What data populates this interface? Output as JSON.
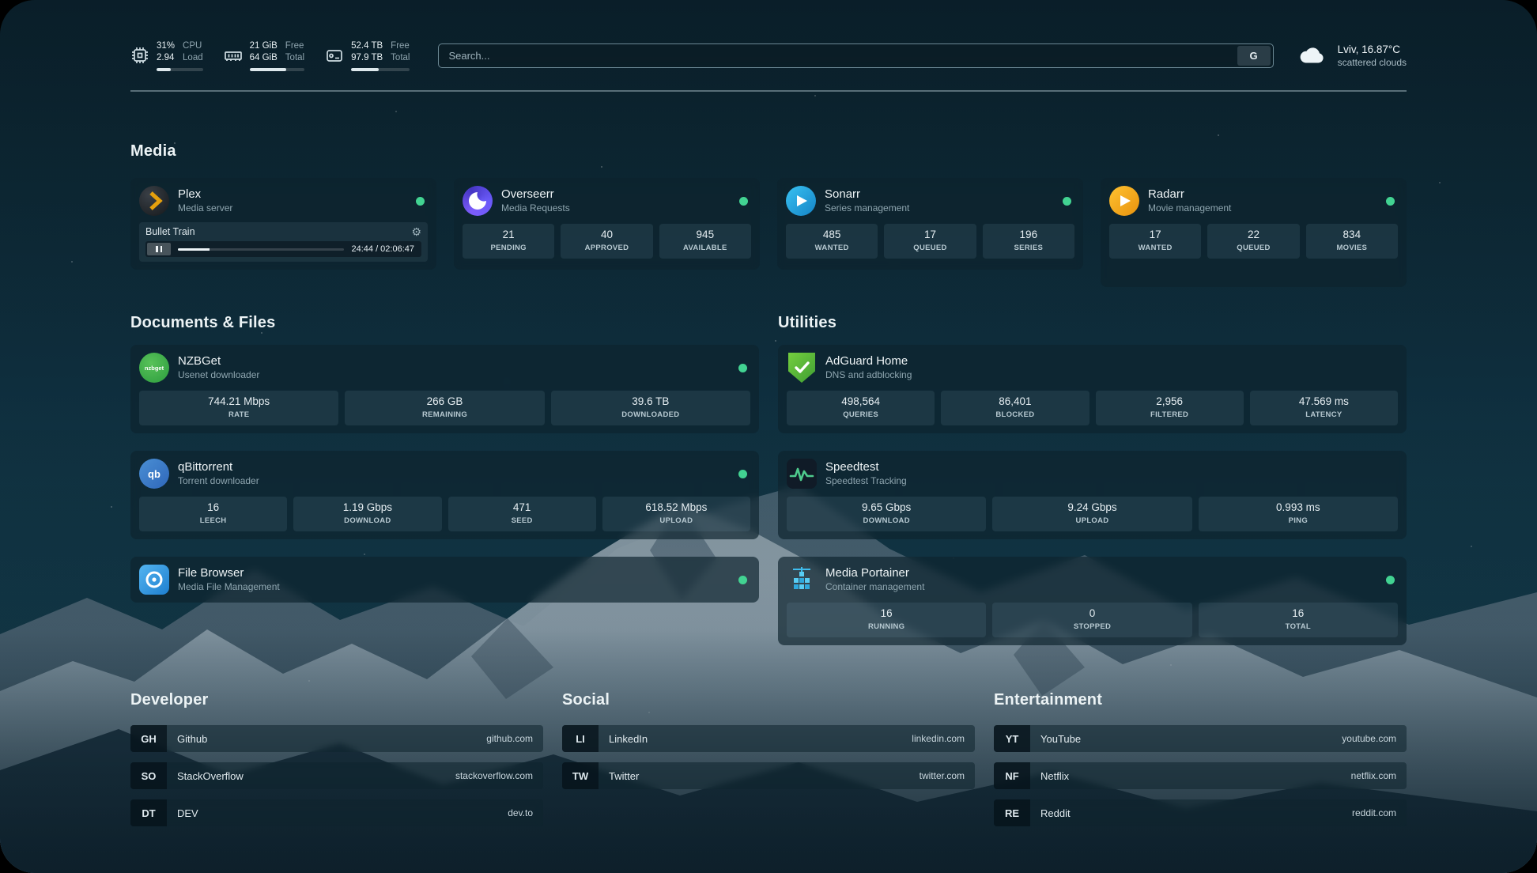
{
  "topbar": {
    "cpu": {
      "value1": "31%",
      "value2": "2.94",
      "label1": "CPU",
      "label2": "Load",
      "bar_percent": 31
    },
    "memory": {
      "value1": "21 GiB",
      "value2": "64 GiB",
      "label1": "Free",
      "label2": "Total",
      "bar_percent": 67
    },
    "disk": {
      "value1": "52.4 TB",
      "value2": "97.9 TB",
      "label1": "Free",
      "label2": "Total",
      "bar_percent": 47
    },
    "search": {
      "placeholder": "Search...",
      "button_label": "G"
    },
    "weather": {
      "location": "Lviv, 16.87°C",
      "condition": "scattered clouds"
    }
  },
  "sections": {
    "media": {
      "title": "Media",
      "plex": {
        "name": "Plex",
        "desc": "Media server",
        "now_playing": "Bullet Train",
        "time": "24:44 / 02:06:47",
        "progress_percent": 19
      },
      "overseerr": {
        "name": "Overseerr",
        "desc": "Media Requests",
        "stats": [
          {
            "value": "21",
            "label": "PENDING"
          },
          {
            "value": "40",
            "label": "APPROVED"
          },
          {
            "value": "945",
            "label": "AVAILABLE"
          }
        ]
      },
      "sonarr": {
        "name": "Sonarr",
        "desc": "Series management",
        "stats": [
          {
            "value": "485",
            "label": "WANTED"
          },
          {
            "value": "17",
            "label": "QUEUED"
          },
          {
            "value": "196",
            "label": "SERIES"
          }
        ]
      },
      "radarr": {
        "name": "Radarr",
        "desc": "Movie management",
        "stats": [
          {
            "value": "17",
            "label": "WANTED"
          },
          {
            "value": "22",
            "label": "QUEUED"
          },
          {
            "value": "834",
            "label": "MOVIES"
          }
        ]
      }
    },
    "documents": {
      "title": "Documents & Files",
      "nzbget": {
        "name": "NZBGet",
        "desc": "Usenet downloader",
        "icon_text": "nzbget",
        "stats": [
          {
            "value": "744.21 Mbps",
            "label": "RATE"
          },
          {
            "value": "266 GB",
            "label": "REMAINING"
          },
          {
            "value": "39.6 TB",
            "label": "DOWNLOADED"
          }
        ]
      },
      "qbittorrent": {
        "name": "qBittorrent",
        "desc": "Torrent downloader",
        "icon_text": "qb",
        "stats": [
          {
            "value": "16",
            "label": "LEECH"
          },
          {
            "value": "1.19 Gbps",
            "label": "DOWNLOAD"
          },
          {
            "value": "471",
            "label": "SEED"
          },
          {
            "value": "618.52 Mbps",
            "label": "UPLOAD"
          }
        ]
      },
      "filebrowser": {
        "name": "File Browser",
        "desc": "Media File Management"
      }
    },
    "utilities": {
      "title": "Utilities",
      "adguard": {
        "name": "AdGuard Home",
        "desc": "DNS and adblocking",
        "stats": [
          {
            "value": "498,564",
            "label": "QUERIES"
          },
          {
            "value": "86,401",
            "label": "BLOCKED"
          },
          {
            "value": "2,956",
            "label": "FILTERED"
          },
          {
            "value": "47.569 ms",
            "label": "LATENCY"
          }
        ]
      },
      "speedtest": {
        "name": "Speedtest",
        "desc": "Speedtest Tracking",
        "stats": [
          {
            "value": "9.65 Gbps",
            "label": "DOWNLOAD"
          },
          {
            "value": "9.24 Gbps",
            "label": "UPLOAD"
          },
          {
            "value": "0.993 ms",
            "label": "PING"
          }
        ]
      },
      "portainer": {
        "name": "Media Portainer",
        "desc": "Container management",
        "stats": [
          {
            "value": "16",
            "label": "RUNNING"
          },
          {
            "value": "0",
            "label": "STOPPED"
          },
          {
            "value": "16",
            "label": "TOTAL"
          }
        ]
      }
    },
    "bookmarks": [
      {
        "title": "Developer",
        "items": [
          {
            "abbr": "GH",
            "name": "Github",
            "url": "github.com"
          },
          {
            "abbr": "SO",
            "name": "StackOverflow",
            "url": "stackoverflow.com"
          },
          {
            "abbr": "DT",
            "name": "DEV",
            "url": "dev.to"
          }
        ]
      },
      {
        "title": "Social",
        "items": [
          {
            "abbr": "LI",
            "name": "LinkedIn",
            "url": "linkedin.com"
          },
          {
            "abbr": "TW",
            "name": "Twitter",
            "url": "twitter.com"
          }
        ]
      },
      {
        "title": "Entertainment",
        "items": [
          {
            "abbr": "YT",
            "name": "YouTube",
            "url": "youtube.com"
          },
          {
            "abbr": "NF",
            "name": "Netflix",
            "url": "netflix.com"
          },
          {
            "abbr": "RE",
            "name": "Reddit",
            "url": "reddit.com"
          }
        ]
      }
    ]
  },
  "icons": {
    "gear": "⚙"
  },
  "colors": {
    "status_online": "#42d392"
  }
}
